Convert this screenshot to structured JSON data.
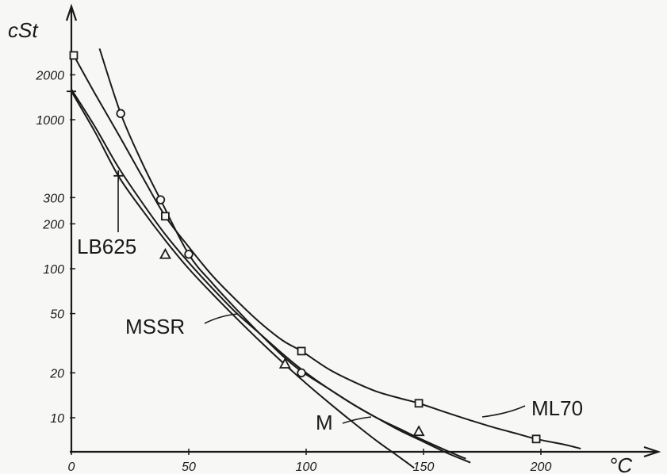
{
  "chart_data": {
    "type": "line",
    "title": "",
    "xlabel": "°C",
    "ylabel": "cSt",
    "yscale": "log",
    "grid": false,
    "xlim": [
      0,
      240
    ],
    "ylim": [
      5,
      4000
    ],
    "xticks": [
      {
        "value": 0,
        "label": "0"
      },
      {
        "value": 50,
        "label": "50"
      },
      {
        "value": 100,
        "label": "100"
      },
      {
        "value": 150,
        "label": "150"
      },
      {
        "value": 200,
        "label": "200"
      }
    ],
    "yticks": [
      {
        "value": 10,
        "label": "10"
      },
      {
        "value": 20,
        "label": "20"
      },
      {
        "value": 50,
        "label": "50"
      },
      {
        "value": 100,
        "label": "100"
      },
      {
        "value": 200,
        "label": "200"
      },
      {
        "value": 300,
        "label": "300"
      },
      {
        "value": 1000,
        "label": "1000"
      },
      {
        "value": 2000,
        "label": "2000"
      }
    ],
    "series": [
      {
        "name": "ML70",
        "marker": "square",
        "points": [
          [
            1,
            2700
          ],
          [
            40,
            225
          ],
          [
            98,
            28
          ],
          [
            148,
            12.5
          ],
          [
            198,
            7.2
          ]
        ],
        "curve": [
          [
            1,
            2700
          ],
          [
            10,
            1500
          ],
          [
            20,
            800
          ],
          [
            30,
            420
          ],
          [
            40,
            225
          ],
          [
            50,
            140
          ],
          [
            60,
            90
          ],
          [
            70,
            62
          ],
          [
            80,
            44
          ],
          [
            90,
            33
          ],
          [
            98,
            28
          ],
          [
            110,
            21
          ],
          [
            120,
            17.5
          ],
          [
            130,
            15
          ],
          [
            140,
            13.5
          ],
          [
            148,
            12.5
          ],
          [
            160,
            10.8
          ],
          [
            170,
            9.6
          ],
          [
            180,
            8.6
          ],
          [
            190,
            7.8
          ],
          [
            198,
            7.2
          ],
          [
            210,
            6.6
          ],
          [
            217,
            6.2
          ]
        ]
      },
      {
        "name": "LB625",
        "marker": "cross",
        "points": [
          [
            0,
            1550
          ],
          [
            20,
            420
          ]
        ],
        "curve": [
          [
            0,
            1550
          ],
          [
            10,
            830
          ],
          [
            20,
            420
          ],
          [
            30,
            250
          ],
          [
            40,
            155
          ],
          [
            50,
            100
          ],
          [
            60,
            68
          ],
          [
            70,
            47
          ],
          [
            80,
            33
          ],
          [
            90,
            23.5
          ],
          [
            100,
            17
          ],
          [
            110,
            12.5
          ],
          [
            120,
            9.3
          ],
          [
            130,
            7
          ],
          [
            140,
            5.4
          ],
          [
            146,
            4.6
          ]
        ]
      },
      {
        "name": "MSSR",
        "marker": "triangle",
        "points": [
          [
            40,
            125
          ],
          [
            91,
            23
          ],
          [
            148,
            8.1
          ]
        ],
        "curve": [
          [
            0,
            1600
          ],
          [
            10,
            900
          ],
          [
            20,
            480
          ],
          [
            30,
            280
          ],
          [
            40,
            170
          ],
          [
            50,
            110
          ],
          [
            60,
            74
          ],
          [
            70,
            51
          ],
          [
            80,
            37
          ],
          [
            91,
            26
          ],
          [
            100,
            20
          ],
          [
            110,
            15.5
          ],
          [
            120,
            12.3
          ],
          [
            130,
            10
          ],
          [
            140,
            8.4
          ],
          [
            148,
            7.3
          ],
          [
            160,
            6
          ],
          [
            168,
            5.3
          ]
        ]
      },
      {
        "name": "M",
        "marker": "circle",
        "points": [
          [
            21,
            1100
          ],
          [
            38,
            290
          ],
          [
            50,
            125
          ],
          [
            98,
            20
          ]
        ],
        "curve": [
          [
            12,
            3000
          ],
          [
            21,
            1100
          ],
          [
            30,
            520
          ],
          [
            38,
            290
          ],
          [
            50,
            125
          ],
          [
            60,
            80
          ],
          [
            70,
            54
          ],
          [
            80,
            37
          ],
          [
            90,
            26
          ],
          [
            98,
            20.5
          ],
          [
            110,
            15.5
          ],
          [
            120,
            12.3
          ],
          [
            130,
            10
          ],
          [
            140,
            8.2
          ],
          [
            150,
            6.9
          ],
          [
            160,
            5.8
          ],
          [
            170,
            5
          ]
        ]
      }
    ]
  }
}
